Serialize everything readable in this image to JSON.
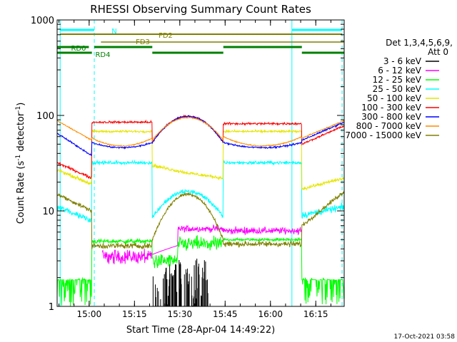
{
  "chart_data": {
    "type": "line",
    "title": "RHESSI Observing Summary Count Rates",
    "xlabel": "Start Time (28-Apr-04 14:49:22)",
    "ylabel_main": "Count Rate (s",
    "ylabel_sup1": "-1",
    "ylabel_mid": " detector",
    "ylabel_sup2": "-1",
    "ylabel_end": ")",
    "y_scale": "log",
    "ylim": [
      1,
      1000
    ],
    "xlim_minutes": [
      0,
      95
    ],
    "x_ticks": [
      {
        "label": "15:00",
        "min": 10.6
      },
      {
        "label": "15:15",
        "min": 25.6
      },
      {
        "label": "15:30",
        "min": 40.6
      },
      {
        "label": "15:45",
        "min": 55.6
      },
      {
        "label": "16:00",
        "min": 70.6
      },
      {
        "label": "16:15",
        "min": 85.6
      }
    ],
    "y_ticks": [
      {
        "label": "1",
        "value": 1
      },
      {
        "label": "10",
        "value": 10
      },
      {
        "label": "100",
        "value": 100
      },
      {
        "label": "1000",
        "value": 1000
      }
    ],
    "legend": {
      "placement": "right",
      "header1": "Det 1,3,4,5,6,9,",
      "header2": "Att 0"
    },
    "series": [
      {
        "name": "3 - 6 keV",
        "color": "#000000"
      },
      {
        "name": "6 - 12 keV",
        "color": "#ff00ff"
      },
      {
        "name": "12 - 25 keV",
        "color": "#00ff00"
      },
      {
        "name": "25 - 50 keV",
        "color": "#00ffff"
      },
      {
        "name": "50 - 100 keV",
        "color": "#e6e600"
      },
      {
        "name": "100 - 300 keV",
        "color": "#ff0000"
      },
      {
        "name": "300 - 800 keV",
        "color": "#0000ff"
      },
      {
        "name": "800 - 7000 keV",
        "color": "#ff8c00"
      },
      {
        "name": "7000 - 15000 keV",
        "color": "#808000"
      }
    ],
    "flags": [
      {
        "label": "N",
        "color": "#00ffff"
      },
      {
        "label": "FD2",
        "color": "#808000"
      },
      {
        "label": "FD3",
        "color": "#808000"
      },
      {
        "label": "RD0",
        "color": "#008000"
      },
      {
        "label": "RD4",
        "color": "#008000"
      }
    ],
    "footer": "17-Oct-2021 03:58"
  }
}
